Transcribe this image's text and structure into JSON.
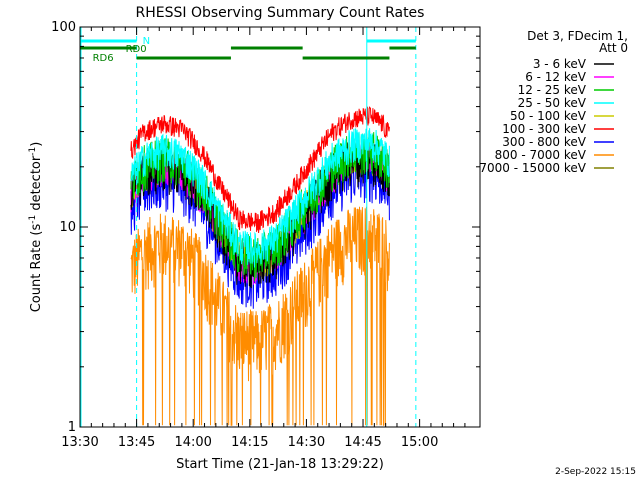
{
  "chart_data": {
    "type": "line",
    "title": "RHESSI Observing Summary Count Rates",
    "xlabel": "Start Time (21-Jan-18 13:29:22)",
    "ylabel_main": "Count Rate (s",
    "ylabel_sup1": "-1",
    "ylabel_mid": " detector",
    "ylabel_sup2": "-1",
    "ylabel_end": ")",
    "y_scale": "log",
    "ylim": [
      1,
      100
    ],
    "xlim_minutes": [
      0,
      106
    ],
    "x_ticks": [
      {
        "label": "13:30",
        "minute": 0
      },
      {
        "label": "13:45",
        "minute": 15
      },
      {
        "label": "14:00",
        "minute": 30
      },
      {
        "label": "14:15",
        "minute": 45
      },
      {
        "label": "14:30",
        "minute": 60
      },
      {
        "label": "14:45",
        "minute": 75
      },
      {
        "label": "15:00",
        "minute": 90
      }
    ],
    "y_ticks": [
      {
        "label": "1",
        "value": 1
      },
      {
        "label": "10",
        "value": 10
      },
      {
        "label": "100",
        "value": 100
      }
    ],
    "legend_header": [
      "Det 3, FDecim 1,",
      "Att 0"
    ],
    "legend_position": "right",
    "series": [
      {
        "name": "3 - 6 keV",
        "color": "#000000",
        "scale": 0.62,
        "jitter": 0.28,
        "floor": 0
      },
      {
        "name": "6 - 12 keV",
        "color": "#ff00ff",
        "scale": 0.62,
        "jitter": 0.22,
        "floor": 0
      },
      {
        "name": "12 - 25 keV",
        "color": "#00cc00",
        "scale": 0.68,
        "jitter": 0.26,
        "floor": 0
      },
      {
        "name": "25 - 50 keV",
        "color": "#00ffff",
        "scale": 0.74,
        "jitter": 0.2,
        "floor": 0
      },
      {
        "name": "50 - 100 keV",
        "color": "#cccc00",
        "scale": 0.64,
        "jitter": 0.22,
        "floor": 0
      },
      {
        "name": "100 - 300 keV",
        "color": "#ff0000",
        "scale": 1.0,
        "jitter": 0.12,
        "floor": 0
      },
      {
        "name": "300 - 800 keV",
        "color": "#0000ff",
        "scale": 0.52,
        "jitter": 0.3,
        "floor": 0
      },
      {
        "name": "800 - 7000 keV",
        "color": "#ff8c00",
        "scale": 0.26,
        "jitter": 0.4,
        "floor": 1
      },
      {
        "name": "7000 - 15000 keV",
        "color": "#808000",
        "scale": 0.0,
        "jitter": 0.0,
        "floor": 0
      }
    ],
    "envelope": [
      {
        "minute": 13.5,
        "value": 24
      },
      {
        "minute": 17,
        "value": 30
      },
      {
        "minute": 22,
        "value": 33
      },
      {
        "minute": 27,
        "value": 31
      },
      {
        "minute": 32,
        "value": 24
      },
      {
        "minute": 37,
        "value": 16
      },
      {
        "minute": 42,
        "value": 11
      },
      {
        "minute": 47,
        "value": 10.5
      },
      {
        "minute": 52,
        "value": 12
      },
      {
        "minute": 57,
        "value": 16
      },
      {
        "minute": 62,
        "value": 22
      },
      {
        "minute": 67,
        "value": 30
      },
      {
        "minute": 72,
        "value": 35
      },
      {
        "minute": 77,
        "value": 36
      },
      {
        "minute": 80,
        "value": 33
      },
      {
        "minute": 82,
        "value": 29
      }
    ],
    "data_range_minutes": [
      13.5,
      82
    ],
    "annotations": {
      "dashed_lines_minutes": [
        15,
        89
      ],
      "solid_lines_minutes": [
        0,
        76
      ],
      "n_label": "N",
      "rd0_label": "RD0",
      "rd6_label": "RD6",
      "n_bars": [
        [
          0,
          15
        ],
        [
          76,
          89
        ]
      ],
      "rd0_bars": [
        [
          0,
          15
        ],
        [
          82,
          89
        ]
      ],
      "rd6_bars": [
        [
          15,
          40
        ],
        [
          40,
          59
        ],
        [
          59,
          82
        ]
      ]
    },
    "colors": {
      "cyan": "#00ffff",
      "green": "#008000",
      "axis": "#000000"
    }
  },
  "footer": {
    "date_stamp": "2-Sep-2022 15:15"
  }
}
